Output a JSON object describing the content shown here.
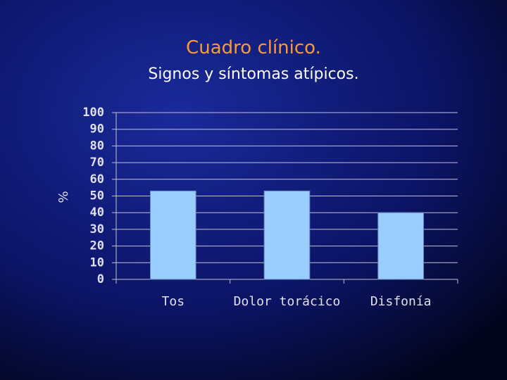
{
  "chart_data": {
    "type": "bar",
    "title": "Cuadro clínico.",
    "subtitle": "Signos y síntomas atípicos.",
    "y_label": "%",
    "categories": [
      "Tos",
      "Dolor torácico",
      "Disfonía"
    ],
    "values": [
      53,
      53,
      40
    ],
    "color": "#99ccff",
    "ylim": [
      0,
      100
    ],
    "yticks": [
      0,
      10,
      20,
      30,
      40,
      50,
      60,
      70,
      80,
      90,
      100
    ],
    "grid": true
  }
}
